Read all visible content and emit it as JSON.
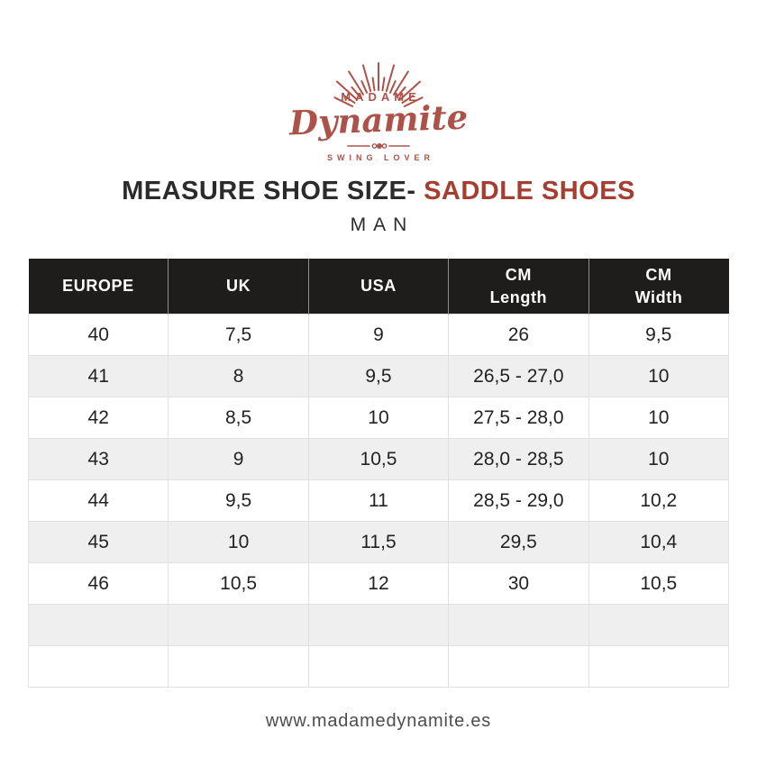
{
  "logo": {
    "brand_top": "MADAME",
    "brand_script": "Dynamite",
    "tagline": "SWING LOVER",
    "color": "#ad5249"
  },
  "title": {
    "main": "MEASURE SHOE SIZE-",
    "accent": "SADDLE SHOES",
    "subtitle": "MAN",
    "main_color": "#2b2b2b",
    "accent_color": "#a63d31"
  },
  "table": {
    "header_bg": "#1f1c1c",
    "header_text_color": "#ffffff",
    "stripe_color": "#f0efef",
    "headers": [
      {
        "lines": [
          "EUROPE"
        ]
      },
      {
        "lines": [
          "UK"
        ]
      },
      {
        "lines": [
          "USA"
        ]
      },
      {
        "lines": [
          "CM",
          "Length"
        ]
      },
      {
        "lines": [
          "CM",
          "Width"
        ]
      }
    ],
    "rows": [
      [
        "40",
        "7,5",
        "9",
        "26",
        "9,5"
      ],
      [
        "41",
        "8",
        "9,5",
        "26,5 - 27,0",
        "10"
      ],
      [
        "42",
        "8,5",
        "10",
        "27,5 - 28,0",
        "10"
      ],
      [
        "43",
        "9",
        "10,5",
        "28,0 - 28,5",
        "10"
      ],
      [
        "44",
        "9,5",
        "11",
        "28,5 - 29,0",
        "10,2"
      ],
      [
        "45",
        "10",
        "11,5",
        "29,5",
        "10,4"
      ],
      [
        "46",
        "10,5",
        "12",
        "30",
        "10,5"
      ],
      [
        "",
        "",
        "",
        "",
        ""
      ],
      [
        "",
        "",
        "",
        "",
        ""
      ]
    ]
  },
  "footer": {
    "website": "www.madamedynamite.es"
  }
}
